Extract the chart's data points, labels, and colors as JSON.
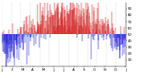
{
  "ylim": [
    0,
    100
  ],
  "num_points": 365,
  "background_color": "#ffffff",
  "bar_color_high": "#cc0000",
  "bar_color_low": "#0000cc",
  "baseline": 50,
  "grid_color": "#999999",
  "tick_fontsize": 2.8,
  "ytick_values": [
    10,
    20,
    30,
    40,
    50,
    60,
    70,
    80,
    90
  ],
  "num_gridlines": 14,
  "seed": 42,
  "amplitude": 30,
  "period_factor": 1.5,
  "noise_std": 18,
  "bar_linewidth": 0.35
}
